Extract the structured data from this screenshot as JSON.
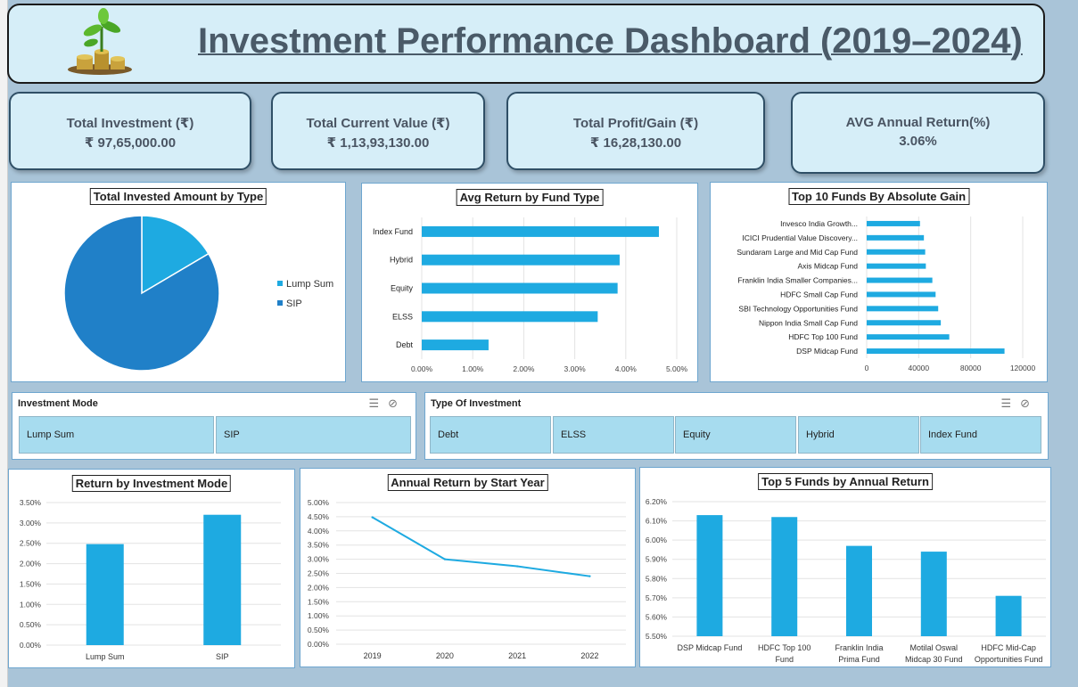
{
  "header": {
    "title": "Investment Performance Dashboard (2019–2024)"
  },
  "kpis": [
    {
      "label": "Total Investment (₹)",
      "value": "₹  97,65,000.00"
    },
    {
      "label": "Total Current Value (₹)",
      "value": "₹  1,13,93,130.00"
    },
    {
      "label": "Total Profit/Gain  (₹)",
      "value": "₹  16,28,130.00"
    },
    {
      "label": "AVG Annual Return(%)",
      "value": "3.06%"
    }
  ],
  "colors": {
    "accent": "#1eaae1",
    "dark_blue": "#2080c8",
    "panel_border": "#6ea6cf",
    "background": "#a9c4d8"
  },
  "slicers": {
    "mode": {
      "title": "Investment Mode",
      "options": [
        "Lump Sum",
        "SIP"
      ]
    },
    "type": {
      "title": "Type Of Investment",
      "options": [
        "Debt",
        "ELSS",
        "Equity",
        "Hybrid",
        "Index Fund"
      ]
    },
    "icons": [
      "multi-select-icon",
      "clear-filter-icon"
    ]
  },
  "chart_data": [
    {
      "type": "pie",
      "title": "Total Invested Amount by Type",
      "categories": [
        "Lump Sum",
        "SIP"
      ],
      "values": [
        16.5,
        83.5
      ],
      "colors": [
        "#1eaae1",
        "#2080c8"
      ],
      "legend": "right"
    },
    {
      "type": "bar",
      "orientation": "horizontal",
      "title": "Avg Return by Fund Type",
      "categories": [
        "Index Fund",
        "Hybrid",
        "Equity",
        "ELSS",
        "Debt"
      ],
      "values": [
        4.65,
        3.88,
        3.84,
        3.45,
        1.31
      ],
      "xlim": [
        0,
        5
      ],
      "ticks": [
        "0.00%",
        "1.00%",
        "2.00%",
        "3.00%",
        "4.00%",
        "5.00%"
      ],
      "grid": true
    },
    {
      "type": "bar",
      "orientation": "horizontal",
      "title": "Top 10 Funds By Absolute Gain",
      "categories": [
        "Invesco India Growth...",
        "ICICI Prudential Value Discovery...",
        "Sundaram Large and Mid Cap Fund",
        "Axis Midcap Fund",
        "Franklin India Smaller Companies...",
        "HDFC Small Cap Fund",
        "SBI Technology Opportunities Fund",
        "Nippon India Small Cap Fund",
        "HDFC Top 100 Fund",
        "DSP Midcap Fund"
      ],
      "values": [
        41000,
        44000,
        45000,
        45500,
        50500,
        53000,
        55000,
        57000,
        63500,
        106000
      ],
      "xlim": [
        0,
        120000
      ],
      "ticks": [
        "0",
        "40000",
        "80000",
        "120000"
      ],
      "grid": true
    },
    {
      "type": "bar",
      "title": "Return by Investment Mode",
      "categories": [
        "Lump Sum",
        "SIP"
      ],
      "values": [
        2.48,
        3.2
      ],
      "ylim": [
        0,
        3.5
      ],
      "ticks": [
        "0.00%",
        "0.50%",
        "1.00%",
        "1.50%",
        "2.00%",
        "2.50%",
        "3.00%",
        "3.50%"
      ],
      "grid": true
    },
    {
      "type": "line",
      "title": "Annual Return by Start Year",
      "x": [
        "2019",
        "2020",
        "2021",
        "2022"
      ],
      "values": [
        4.48,
        3.0,
        2.75,
        2.4
      ],
      "ylim": [
        0,
        5
      ],
      "ticks": [
        "0.00%",
        "0.50%",
        "1.00%",
        "1.50%",
        "2.00%",
        "2.50%",
        "3.00%",
        "3.50%",
        "4.00%",
        "4.50%",
        "5.00%"
      ],
      "grid": true
    },
    {
      "type": "bar",
      "title": "Top 5 Funds by Annual Return",
      "categories": [
        [
          "DSP Midcap Fund"
        ],
        [
          "HDFC Top 100",
          "Fund"
        ],
        [
          "Franklin India",
          "Prima Fund"
        ],
        [
          "Motilal Oswal",
          "Midcap 30 Fund"
        ],
        [
          "HDFC Mid-Cap",
          "Opportunities Fund"
        ]
      ],
      "values": [
        6.13,
        6.12,
        5.97,
        5.94,
        5.71
      ],
      "ylim": [
        5.5,
        6.2
      ],
      "ticks": [
        "5.50%",
        "5.60%",
        "5.70%",
        "5.80%",
        "5.90%",
        "6.00%",
        "6.10%",
        "6.20%"
      ],
      "grid": true
    }
  ]
}
